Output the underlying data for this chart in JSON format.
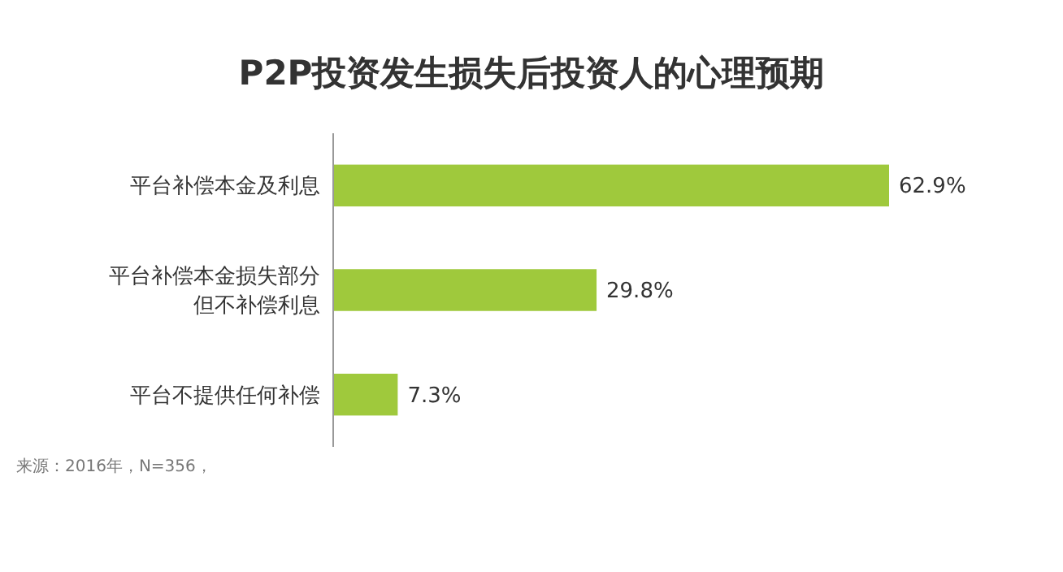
{
  "chart_data": {
    "type": "bar",
    "orientation": "horizontal",
    "title": "P2P投资发生损失后投资人的心理预期",
    "categories": [
      "平台补偿本金及利息",
      "平台补偿本金损失部分但不补偿利息",
      "平台不提供任何补偿"
    ],
    "values": [
      62.9,
      29.8,
      7.3
    ],
    "color": "#9fc93c",
    "value_labels": [
      "62.9%",
      "29.8%",
      "7.3%"
    ],
    "annotations": [
      "来源：2016年，N=356，"
    ]
  }
}
